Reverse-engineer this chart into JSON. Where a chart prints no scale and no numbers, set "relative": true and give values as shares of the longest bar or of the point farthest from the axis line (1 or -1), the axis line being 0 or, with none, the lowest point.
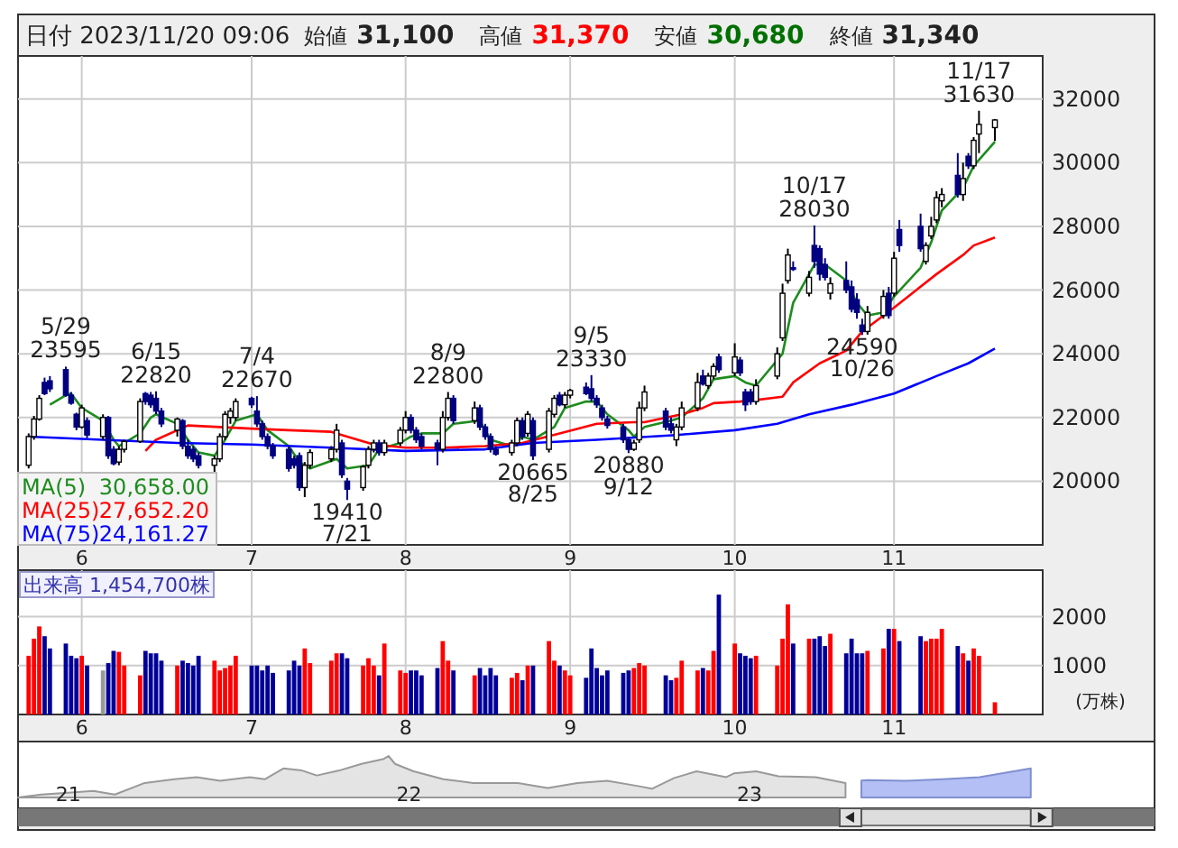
{
  "chart_data": [
    {
      "type": "candlestick",
      "title": "日付 2023/11/20 09:06",
      "annotations": [
        "始値",
        "31,100",
        "高値",
        "31,370",
        "安値",
        "30,680",
        "終値",
        "31,340",
        {
          "text": "5/29 23595",
          "x": "2023-05-29",
          "y": 23595
        },
        {
          "text": "6/15 22820",
          "x": "2023-06-15",
          "y": 22820
        },
        {
          "text": "7/4 22670",
          "x": "2023-07-04",
          "y": 22670
        },
        {
          "text": "19410 7/21",
          "x": "2023-07-21",
          "y": 19410
        },
        {
          "text": "8/9 22800",
          "x": "2023-08-09",
          "y": 22800
        },
        {
          "text": "20665 8/25",
          "x": "2023-08-25",
          "y": 20665
        },
        {
          "text": "9/5 23330",
          "x": "2023-09-05",
          "y": 23330
        },
        {
          "text": "20880 9/12",
          "x": "2023-09-12",
          "y": 20880
        },
        {
          "text": "10/17 28030",
          "x": "2023-10-17",
          "y": 28030
        },
        {
          "text": "24590 10/26",
          "x": "2023-10-26",
          "y": 24590
        },
        {
          "text": "11/17 31630",
          "x": "2023-11-17",
          "y": 31630
        },
        "30,658.00",
        "27,652.20",
        "24,161.27"
      ],
      "x": [
        "2023-05-22",
        "2023-05-23",
        "2023-05-24",
        "2023-05-25",
        "2023-05-26",
        "2023-05-29",
        "2023-05-30",
        "2023-05-31",
        "2023-06-01",
        "2023-06-02",
        "2023-06-05",
        "2023-06-06",
        "2023-06-07",
        "2023-06-08",
        "2023-06-09",
        "2023-06-12",
        "2023-06-13",
        "2023-06-14",
        "2023-06-15",
        "2023-06-16",
        "2023-06-19",
        "2023-06-20",
        "2023-06-21",
        "2023-06-22",
        "2023-06-23",
        "2023-06-26",
        "2023-06-27",
        "2023-06-28",
        "2023-06-29",
        "2023-06-30",
        "2023-07-03",
        "2023-07-04",
        "2023-07-05",
        "2023-07-06",
        "2023-07-07",
        "2023-07-10",
        "2023-07-11",
        "2023-07-12",
        "2023-07-13",
        "2023-07-14",
        "2023-07-18",
        "2023-07-19",
        "2023-07-20",
        "2023-07-21",
        "2023-07-24",
        "2023-07-25",
        "2023-07-26",
        "2023-07-27",
        "2023-07-28",
        "2023-07-31",
        "2023-08-01",
        "2023-08-02",
        "2023-08-03",
        "2023-08-04",
        "2023-08-07",
        "2023-08-08",
        "2023-08-09",
        "2023-08-10",
        "2023-08-14",
        "2023-08-15",
        "2023-08-16",
        "2023-08-17",
        "2023-08-18",
        "2023-08-21",
        "2023-08-22",
        "2023-08-23",
        "2023-08-24",
        "2023-08-25",
        "2023-08-28",
        "2023-08-29",
        "2023-08-30",
        "2023-08-31",
        "2023-09-01",
        "2023-09-04",
        "2023-09-05",
        "2023-09-06",
        "2023-09-07",
        "2023-09-08",
        "2023-09-11",
        "2023-09-12",
        "2023-09-13",
        "2023-09-14",
        "2023-09-15",
        "2023-09-19",
        "2023-09-20",
        "2023-09-21",
        "2023-09-22",
        "2023-09-25",
        "2023-09-26",
        "2023-09-27",
        "2023-09-28",
        "2023-09-29",
        "2023-10-02",
        "2023-10-03",
        "2023-10-04",
        "2023-10-05",
        "2023-10-06",
        "2023-10-10",
        "2023-10-11",
        "2023-10-12",
        "2023-10-13",
        "2023-10-16",
        "2023-10-17",
        "2023-10-18",
        "2023-10-19",
        "2023-10-20",
        "2023-10-23",
        "2023-10-24",
        "2023-10-25",
        "2023-10-26",
        "2023-10-27",
        "2023-10-30",
        "2023-10-31",
        "2023-11-01",
        "2023-11-02",
        "2023-11-06",
        "2023-11-07",
        "2023-11-08",
        "2023-11-09",
        "2023-11-10",
        "2023-11-13",
        "2023-11-14",
        "2023-11-15",
        "2023-11-16",
        "2023-11-17",
        "2023-11-20"
      ],
      "ohlc": [
        [
          20500,
          21500,
          20400,
          21400
        ],
        [
          21400,
          22050,
          21300,
          21950
        ],
        [
          21950,
          22700,
          21900,
          22600
        ],
        [
          23100,
          23250,
          22700,
          22750
        ],
        [
          23150,
          23300,
          22800,
          22900
        ],
        [
          23500,
          23595,
          22650,
          22700
        ],
        [
          22700,
          22800,
          22400,
          22450
        ],
        [
          22100,
          22150,
          21600,
          21700
        ],
        [
          21700,
          22400,
          21650,
          22300
        ],
        [
          21900,
          22000,
          21350,
          21450
        ],
        [
          21400,
          22100,
          21300,
          22000
        ],
        [
          22000,
          22050,
          20700,
          20800
        ],
        [
          21000,
          21100,
          20500,
          20550
        ],
        [
          20600,
          21100,
          20500,
          21000
        ],
        [
          21000,
          21300,
          20900,
          21250
        ],
        [
          21250,
          22600,
          21200,
          22500
        ],
        [
          22750,
          22800,
          22400,
          22500
        ],
        [
          22700,
          22800,
          22300,
          22400
        ],
        [
          22600,
          22820,
          22100,
          22200
        ],
        [
          22200,
          22300,
          21700,
          21800
        ],
        [
          21600,
          22000,
          21400,
          21950
        ],
        [
          21900,
          21950,
          21000,
          21100
        ],
        [
          21100,
          21300,
          20700,
          20800
        ],
        [
          21000,
          21100,
          20600,
          20700
        ],
        [
          20800,
          20900,
          20400,
          20500
        ],
        [
          20500,
          20800,
          20155,
          20700
        ],
        [
          20700,
          21500,
          20600,
          21400
        ],
        [
          21400,
          22200,
          21300,
          22100
        ],
        [
          22000,
          22300,
          21800,
          22200
        ],
        [
          22000,
          22600,
          21900,
          22500
        ],
        [
          22600,
          22650,
          22300,
          22400
        ],
        [
          22200,
          22670,
          21700,
          21800
        ],
        [
          21800,
          21900,
          21300,
          21400
        ],
        [
          21400,
          21500,
          21000,
          21100
        ],
        [
          21100,
          21200,
          20700,
          20800
        ],
        [
          21000,
          21100,
          20300,
          20400
        ],
        [
          20700,
          20800,
          20400,
          20500
        ],
        [
          20800,
          20900,
          19700,
          19800
        ],
        [
          19800,
          20600,
          19500,
          20500
        ],
        [
          20500,
          21000,
          20400,
          20900
        ],
        [
          20700,
          21100,
          20600,
          21000
        ],
        [
          21000,
          21800,
          20900,
          21600
        ],
        [
          21200,
          21300,
          20100,
          20200
        ],
        [
          20000,
          20100,
          19410,
          19750
        ],
        [
          19800,
          20500,
          19700,
          20450
        ],
        [
          20500,
          21100,
          20400,
          21000
        ],
        [
          21000,
          21300,
          20900,
          21200
        ],
        [
          21200,
          21300,
          20800,
          20900
        ],
        [
          20900,
          21300,
          20800,
          21200
        ],
        [
          21200,
          21700,
          21100,
          21600
        ],
        [
          21600,
          22200,
          21500,
          22000
        ],
        [
          22000,
          22100,
          21500,
          21600
        ],
        [
          21600,
          21700,
          21200,
          21300
        ],
        [
          21400,
          21500,
          21000,
          21100
        ],
        [
          21200,
          21300,
          20500,
          21000
        ],
        [
          21000,
          22200,
          20900,
          22000
        ],
        [
          22000,
          22800,
          21900,
          22600
        ],
        [
          22600,
          22700,
          21800,
          21900
        ],
        [
          21900,
          22500,
          21800,
          22300
        ],
        [
          22300,
          22400,
          21600,
          21700
        ],
        [
          21700,
          21800,
          21300,
          21400
        ],
        [
          21400,
          21500,
          20900,
          21000
        ],
        [
          21000,
          21100,
          20800,
          20850
        ],
        [
          20900,
          21300,
          20800,
          21200
        ],
        [
          21200,
          22000,
          21100,
          21900
        ],
        [
          21900,
          22000,
          21300,
          21400
        ],
        [
          21500,
          22200,
          21400,
          22100
        ],
        [
          21900,
          22000,
          20665,
          20800
        ],
        [
          21000,
          22300,
          20900,
          22200
        ],
        [
          22100,
          22700,
          22000,
          22600
        ],
        [
          22700,
          22800,
          22350,
          22400
        ],
        [
          22400,
          22800,
          22300,
          22700
        ],
        [
          22700,
          22900,
          22600,
          22850
        ],
        [
          22950,
          23100,
          22700,
          22750
        ],
        [
          22900,
          23330,
          22500,
          22600
        ],
        [
          22600,
          22700,
          22300,
          22400
        ],
        [
          22300,
          22400,
          21900,
          22000
        ],
        [
          21950,
          22050,
          21650,
          21750
        ],
        [
          21700,
          21800,
          21200,
          21300
        ],
        [
          21300,
          21400,
          20880,
          21000
        ],
        [
          21000,
          21300,
          20950,
          21200
        ],
        [
          21300,
          22500,
          21200,
          22300
        ],
        [
          22300,
          23000,
          22200,
          22800
        ],
        [
          22200,
          22300,
          21600,
          21700
        ],
        [
          21800,
          22000,
          21500,
          21600
        ],
        [
          21300,
          21800,
          21100,
          21700
        ],
        [
          21700,
          22500,
          21600,
          22300
        ],
        [
          22300,
          23400,
          22200,
          23100
        ],
        [
          23300,
          23500,
          23000,
          23050
        ],
        [
          23000,
          23400,
          22900,
          23300
        ],
        [
          23300,
          23700,
          23200,
          23600
        ],
        [
          23900,
          24000,
          23400,
          23500
        ],
        [
          23400,
          24330,
          23300,
          23900
        ],
        [
          23800,
          23900,
          23300,
          23400
        ],
        [
          22800,
          22900,
          22200,
          22400
        ],
        [
          22800,
          22900,
          22400,
          22500
        ],
        [
          22500,
          23200,
          22400,
          23000
        ],
        [
          23300,
          24200,
          23200,
          24000
        ],
        [
          24500,
          26200,
          24400,
          25900
        ],
        [
          26300,
          27300,
          26200,
          27100
        ],
        [
          26700,
          26900,
          26600,
          26650
        ],
        [
          25900,
          26600,
          25800,
          26400
        ],
        [
          27400,
          28030,
          26700,
          26900
        ],
        [
          27300,
          27400,
          26300,
          26500
        ],
        [
          26800,
          27000,
          26300,
          26400
        ],
        [
          25900,
          26400,
          25700,
          26200
        ],
        [
          26300,
          26900,
          25900,
          26000
        ],
        [
          26100,
          26300,
          25300,
          25400
        ],
        [
          25700,
          25900,
          25100,
          25300
        ],
        [
          24900,
          25100,
          24590,
          24700
        ],
        [
          24700,
          25500,
          24600,
          25300
        ],
        [
          25200,
          26000,
          25100,
          25800
        ],
        [
          25900,
          26100,
          25100,
          25200
        ],
        [
          25900,
          27200,
          25800,
          27000
        ],
        [
          27900,
          28200,
          27200,
          27400
        ],
        [
          28000,
          28400,
          27200,
          27300
        ],
        [
          26900,
          27500,
          26800,
          27400
        ],
        [
          27700,
          28300,
          27600,
          28000
        ],
        [
          28200,
          29100,
          28100,
          28900
        ],
        [
          28800,
          29200,
          28600,
          29000
        ],
        [
          29600,
          30300,
          28900,
          29000
        ],
        [
          29000,
          30000,
          28800,
          29500
        ],
        [
          30200,
          30300,
          29800,
          29900
        ],
        [
          29900,
          30800,
          29800,
          30700
        ],
        [
          30900,
          31630,
          30300,
          31200
        ],
        [
          31100,
          31370,
          30680,
          31340
        ]
      ],
      "series": [
        {
          "name": "MA(5)",
          "type": "line",
          "color": "#1e8c1e",
          "x": [
            "2023-05-26",
            "2023-05-29",
            "2023-05-30",
            "2023-06-01",
            "2023-06-05",
            "2023-06-07",
            "2023-06-08",
            "2023-06-12",
            "2023-06-14",
            "2023-06-15",
            "2023-06-19",
            "2023-06-21",
            "2023-06-23",
            "2023-06-26",
            "2023-06-28",
            "2023-06-30",
            "2023-07-04",
            "2023-07-06",
            "2023-07-10",
            "2023-07-12",
            "2023-07-14",
            "2023-07-19",
            "2023-07-21",
            "2023-07-25",
            "2023-07-27",
            "2023-07-31",
            "2023-08-02",
            "2023-08-04",
            "2023-08-08",
            "2023-08-10",
            "2023-08-15",
            "2023-08-17",
            "2023-08-21",
            "2023-08-23",
            "2023-08-25",
            "2023-08-29",
            "2023-08-31",
            "2023-09-04",
            "2023-09-06",
            "2023-09-08",
            "2023-09-12",
            "2023-09-13",
            "2023-09-15",
            "2023-09-20",
            "2023-09-22",
            "2023-09-26",
            "2023-09-28",
            "2023-10-02",
            "2023-10-04",
            "2023-10-06",
            "2023-10-11",
            "2023-10-13",
            "2023-10-17",
            "2023-10-19",
            "2023-10-23",
            "2023-10-25",
            "2023-10-27",
            "2023-10-30",
            "2023-11-01",
            "2023-11-06",
            "2023-11-08",
            "2023-11-10",
            "2023-11-14",
            "2023-11-16",
            "2023-11-20"
          ],
          "values": [
            22400,
            22700,
            22750,
            22300,
            21900,
            21300,
            21100,
            21500,
            22000,
            22100,
            21800,
            21300,
            20900,
            20800,
            21300,
            21900,
            22100,
            21600,
            21100,
            20600,
            20400,
            20700,
            20400,
            20500,
            21000,
            21200,
            21400,
            21500,
            21500,
            21800,
            21900,
            21300,
            21100,
            21400,
            21300,
            21700,
            22300,
            22500,
            22500,
            22100,
            21600,
            21400,
            21700,
            21900,
            22000,
            22600,
            23200,
            23300,
            23100,
            23000,
            24000,
            25600,
            26800,
            26800,
            26300,
            25600,
            25200,
            25300,
            25800,
            26700,
            27500,
            28500,
            29200,
            29900,
            30658
          ]
        },
        {
          "name": "MA(25)",
          "type": "line",
          "color": "#ff0000",
          "x": [
            "2023-06-13",
            "2023-06-15",
            "2023-06-19",
            "2023-06-21",
            "2023-06-27",
            "2023-07-03",
            "2023-07-10",
            "2023-07-18",
            "2023-07-21",
            "2023-07-26",
            "2023-08-01",
            "2023-08-08",
            "2023-08-16",
            "2023-08-23",
            "2023-08-30",
            "2023-09-06",
            "2023-09-13",
            "2023-09-15",
            "2023-09-22",
            "2023-09-26",
            "2023-09-28",
            "2023-10-03",
            "2023-10-06",
            "2023-10-11",
            "2023-10-13",
            "2023-10-18",
            "2023-10-23",
            "2023-10-26",
            "2023-11-01",
            "2023-11-09",
            "2023-11-14",
            "2023-11-16",
            "2023-11-20"
          ],
          "values": [
            20950,
            21300,
            21600,
            21750,
            21700,
            21650,
            21600,
            21550,
            21400,
            21150,
            21050,
            21050,
            21100,
            21200,
            21500,
            21800,
            21850,
            21850,
            22100,
            22300,
            22450,
            22500,
            22550,
            22650,
            23100,
            23700,
            24100,
            24700,
            25450,
            26500,
            27100,
            27400,
            27652.2
          ]
        },
        {
          "name": "MA(75)",
          "type": "line",
          "color": "#0000ff",
          "x": [
            "2023-05-22",
            "2023-06-05",
            "2023-06-19",
            "2023-07-03",
            "2023-07-18",
            "2023-08-01",
            "2023-08-16",
            "2023-08-25",
            "2023-09-06",
            "2023-09-21",
            "2023-10-02",
            "2023-10-10",
            "2023-10-16",
            "2023-10-24",
            "2023-11-01",
            "2023-11-09",
            "2023-11-15",
            "2023-11-20"
          ],
          "values": [
            21400,
            21300,
            21200,
            21150,
            21050,
            20950,
            21000,
            21200,
            21300,
            21450,
            21600,
            21800,
            22100,
            22400,
            22750,
            23300,
            23700,
            24161.27
          ]
        }
      ],
      "xlim": [
        "2023-05-20",
        "2023-11-29"
      ],
      "xticks": [
        {
          "value": "2023-06-01",
          "label": "6"
        },
        {
          "value": "2023-07-03",
          "label": "7"
        },
        {
          "value": "2023-08-01",
          "label": "8"
        },
        {
          "value": "2023-09-01",
          "label": "9"
        },
        {
          "value": "2023-10-02",
          "label": "10"
        },
        {
          "value": "2023-11-01",
          "label": "11"
        }
      ],
      "ylim": [
        18000,
        33350
      ],
      "yticks": [
        20000,
        22000,
        24000,
        26000,
        28000,
        30000,
        32000
      ],
      "grid": true,
      "legend": "bottom left"
    },
    {
      "type": "bar",
      "title": "出来高 1,454,700株",
      "ylabel": "(万株)",
      "x": [
        "2023-05-22",
        "2023-05-23",
        "2023-05-24",
        "2023-05-25",
        "2023-05-26",
        "2023-05-29",
        "2023-05-30",
        "2023-05-31",
        "2023-06-01",
        "2023-06-02",
        "2023-06-05",
        "2023-06-06",
        "2023-06-07",
        "2023-06-08",
        "2023-06-09",
        "2023-06-12",
        "2023-06-13",
        "2023-06-14",
        "2023-06-15",
        "2023-06-16",
        "2023-06-19",
        "2023-06-20",
        "2023-06-21",
        "2023-06-22",
        "2023-06-23",
        "2023-06-26",
        "2023-06-27",
        "2023-06-28",
        "2023-06-29",
        "2023-06-30",
        "2023-07-03",
        "2023-07-04",
        "2023-07-05",
        "2023-07-06",
        "2023-07-07",
        "2023-07-10",
        "2023-07-11",
        "2023-07-12",
        "2023-07-13",
        "2023-07-14",
        "2023-07-18",
        "2023-07-19",
        "2023-07-20",
        "2023-07-21",
        "2023-07-24",
        "2023-07-25",
        "2023-07-26",
        "2023-07-27",
        "2023-07-28",
        "2023-07-31",
        "2023-08-01",
        "2023-08-02",
        "2023-08-03",
        "2023-08-04",
        "2023-08-07",
        "2023-08-08",
        "2023-08-09",
        "2023-08-10",
        "2023-08-14",
        "2023-08-15",
        "2023-08-16",
        "2023-08-17",
        "2023-08-18",
        "2023-08-21",
        "2023-08-22",
        "2023-08-23",
        "2023-08-24",
        "2023-08-25",
        "2023-08-28",
        "2023-08-29",
        "2023-08-30",
        "2023-08-31",
        "2023-09-01",
        "2023-09-04",
        "2023-09-05",
        "2023-09-06",
        "2023-09-07",
        "2023-09-08",
        "2023-09-11",
        "2023-09-12",
        "2023-09-13",
        "2023-09-14",
        "2023-09-15",
        "2023-09-19",
        "2023-09-20",
        "2023-09-21",
        "2023-09-22",
        "2023-09-25",
        "2023-09-26",
        "2023-09-27",
        "2023-09-28",
        "2023-09-29",
        "2023-10-02",
        "2023-10-03",
        "2023-10-04",
        "2023-10-05",
        "2023-10-06",
        "2023-10-10",
        "2023-10-11",
        "2023-10-12",
        "2023-10-13",
        "2023-10-16",
        "2023-10-17",
        "2023-10-18",
        "2023-10-19",
        "2023-10-20",
        "2023-10-23",
        "2023-10-24",
        "2023-10-25",
        "2023-10-26",
        "2023-10-27",
        "2023-10-30",
        "2023-10-31",
        "2023-11-01",
        "2023-11-02",
        "2023-11-06",
        "2023-11-07",
        "2023-11-08",
        "2023-11-09",
        "2023-11-10",
        "2023-11-13",
        "2023-11-14",
        "2023-11-15",
        "2023-11-16",
        "2023-11-17",
        "2023-11-20"
      ],
      "values": [
        1200,
        1550,
        1800,
        1600,
        1350,
        1450,
        1200,
        1150,
        1200,
        1000,
        900,
        1050,
        1300,
        1280,
        1000,
        800,
        1300,
        1250,
        1250,
        1100,
        1000,
        1100,
        1050,
        1000,
        1200,
        1100,
        900,
        950,
        1000,
        1200,
        1000,
        1000,
        900,
        1000,
        850,
        900,
        1100,
        1000,
        1350,
        1050,
        1100,
        1250,
        1250,
        1150,
        1000,
        1150,
        1000,
        800,
        1450,
        900,
        850,
        900,
        900,
        800,
        950,
        1500,
        1100,
        900,
        800,
        950,
        800,
        950,
        800,
        750,
        850,
        700,
        1000,
        1000,
        1500,
        1100,
        1000,
        900,
        800,
        750,
        1350,
        950,
        800,
        900,
        850,
        900,
        950,
        1050,
        1000,
        800,
        700,
        750,
        1100,
        900,
        950,
        900,
        1300,
        2450,
        1450,
        1250,
        1200,
        1150,
        1200,
        1000,
        1550,
        2250,
        1450,
        1550,
        1550,
        1600,
        1400,
        1650,
        1250,
        1550,
        1250,
        1250,
        1300,
        1350,
        1750,
        1750,
        1500,
        1600,
        1500,
        1550,
        1550,
        1750,
        1400,
        1250,
        1100,
        1350,
        1200,
        250
      ],
      "colors": [
        "#ff0000",
        "#ff0000",
        "#ff0000",
        "#000099",
        "#000099",
        "#000099",
        "#000099",
        "#000099",
        "#ff0000",
        "#000099",
        "#999999",
        "#000099",
        "#000099",
        "#ff0000",
        "#ff0000",
        "#ff0000",
        "#000099",
        "#000099",
        "#000099",
        "#000099",
        "#ff0000",
        "#000099",
        "#000099",
        "#000099",
        "#000099",
        "#ff0000",
        "#ff0000",
        "#ff0000",
        "#ff0000",
        "#ff0000",
        "#000099",
        "#000099",
        "#000099",
        "#000099",
        "#000099",
        "#000099",
        "#000099",
        "#000099",
        "#ff0000",
        "#ff0000",
        "#ff0000",
        "#ff0000",
        "#000099",
        "#000099",
        "#ff0000",
        "#ff0000",
        "#ff0000",
        "#000099",
        "#ff0000",
        "#ff0000",
        "#ff0000",
        "#000099",
        "#000099",
        "#000099",
        "#000099",
        "#ff0000",
        "#ff0000",
        "#000099",
        "#ff0000",
        "#000099",
        "#000099",
        "#000099",
        "#000099",
        "#ff0000",
        "#ff0000",
        "#000099",
        "#ff0000",
        "#000099",
        "#ff0000",
        "#ff0000",
        "#000099",
        "#ff0000",
        "#ff0000",
        "#000099",
        "#000099",
        "#000099",
        "#000099",
        "#000099",
        "#000099",
        "#000099",
        "#ff0000",
        "#ff0000",
        "#ff0000",
        "#000099",
        "#000099",
        "#ff0000",
        "#ff0000",
        "#ff0000",
        "#000099",
        "#ff0000",
        "#ff0000",
        "#000099",
        "#ff0000",
        "#000099",
        "#000099",
        "#000099",
        "#ff0000",
        "#ff0000",
        "#ff0000",
        "#ff0000",
        "#000099",
        "#ff0000",
        "#000099",
        "#000099",
        "#000099",
        "#ff0000",
        "#000099",
        "#000099",
        "#000099",
        "#000099",
        "#ff0000",
        "#ff0000",
        "#000099",
        "#ff0000",
        "#000099",
        "#000099",
        "#ff0000",
        "#ff0000",
        "#ff0000",
        "#ff0000",
        "#000099",
        "#ff0000",
        "#000099",
        "#ff0000",
        "#ff0000",
        "#ff0000"
      ],
      "xlim": [
        "2023-05-20",
        "2023-11-29"
      ],
      "xticks": [
        {
          "value": "2023-06-01",
          "label": "6"
        },
        {
          "value": "2023-07-03",
          "label": "7"
        },
        {
          "value": "2023-08-01",
          "label": "8"
        },
        {
          "value": "2023-09-01",
          "label": "9"
        },
        {
          "value": "2023-10-02",
          "label": "10"
        },
        {
          "value": "2023-11-01",
          "label": "11"
        }
      ],
      "ylim": [
        0,
        2950
      ],
      "yticks": [
        1000,
        2000
      ],
      "grid": true
    },
    {
      "type": "area",
      "relative": true,
      "series": [
        {
          "color": "#e4e4e4",
          "x": [
            "2020-11-27",
            "2020-12-22",
            "2021-01-23",
            "2021-02-16",
            "2021-03-11",
            "2021-04-12",
            "2021-05-14",
            "2021-06-07",
            "2021-07-02",
            "2021-08-03",
            "2021-08-19",
            "2021-09-08",
            "2021-09-28",
            "2021-10-14",
            "2021-11-07",
            "2021-12-01",
            "2021-12-25",
            "2021-12-30",
            "2022-01-06",
            "2022-01-26",
            "2022-02-27",
            "2022-03-31",
            "2022-05-18",
            "2022-06-19",
            "2022-07-21",
            "2022-08-22",
            "2022-09-23",
            "2022-10-09",
            "2022-11-02",
            "2022-11-26",
            "2022-12-28",
            "2023-01-05",
            "2023-01-29",
            "2023-02-22",
            "2023-04-03",
            "2023-05-05"
          ],
          "values": [
            0,
            0.07,
            0.12,
            0.16,
            0.07,
            0.35,
            0.44,
            0.49,
            0.4,
            0.49,
            0.44,
            0.7,
            0.65,
            0.53,
            0.65,
            0.81,
            0.93,
            1,
            0.81,
            0.63,
            0.44,
            0.35,
            0.35,
            0.23,
            0.35,
            0.4,
            0.28,
            0.21,
            0.47,
            0.63,
            0.49,
            0.58,
            0.63,
            0.51,
            0.49,
            0.35
          ]
        },
        {
          "type": "area",
          "color": "#b3bff5",
          "x": [
            "2023-05-22",
            "2023-05-29",
            "2023-07-08",
            "2023-08-17",
            "2023-09-26",
            "2023-11-20"
          ],
          "values": [
            0.41,
            0.42,
            0.4,
            0.44,
            0.49,
            0.7
          ]
        }
      ],
      "xlim": [
        "2020-11-27",
        "2024-04-01"
      ],
      "xticks": [
        {
          "value": "2021-01-20",
          "label": "21"
        },
        {
          "value": "2022-01-21",
          "label": "22"
        },
        {
          "value": "2023-01-22",
          "label": "23"
        }
      ]
    }
  ]
}
